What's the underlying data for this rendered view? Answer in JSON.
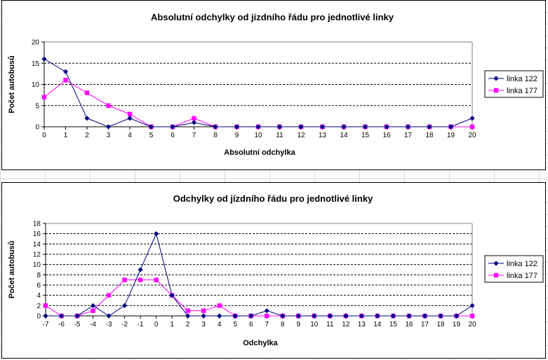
{
  "chart_data": [
    {
      "type": "line",
      "title": "Absolutní odchylky od jízdního řádu pro jednotlivé linky",
      "xlabel": "Absolutní odchylka",
      "ylabel": "Počet autobusů",
      "x": [
        0,
        1,
        2,
        3,
        4,
        5,
        6,
        7,
        8,
        9,
        10,
        11,
        12,
        13,
        14,
        15,
        16,
        17,
        18,
        19,
        20
      ],
      "ylim": [
        0,
        20
      ],
      "yticks": [
        0,
        5,
        10,
        15,
        20
      ],
      "grid": "horizontal dashed",
      "legend_position": "right",
      "series": [
        {
          "name": "linka 122",
          "color": "#000080",
          "marker": "diamond",
          "values": [
            16,
            13,
            2,
            0,
            2,
            0,
            0,
            1,
            0,
            0,
            0,
            0,
            0,
            0,
            0,
            0,
            0,
            0,
            0,
            0,
            2
          ]
        },
        {
          "name": "linka 177",
          "color": "#ff00ff",
          "marker": "square",
          "values": [
            7,
            11,
            8,
            5,
            3,
            0,
            0,
            2,
            0,
            0,
            0,
            0,
            0,
            0,
            0,
            0,
            0,
            0,
            0,
            0,
            0
          ]
        }
      ]
    },
    {
      "type": "line",
      "title": "Odchylky od jízdního řádu pro jednotlivé linky",
      "xlabel": "Odchylka",
      "ylabel": "Počet autobusů",
      "x": [
        -7,
        -6,
        -5,
        -4,
        -3,
        -2,
        -1,
        0,
        1,
        2,
        3,
        4,
        5,
        6,
        7,
        8,
        9,
        10,
        11,
        12,
        13,
        14,
        15,
        16,
        17,
        18,
        19,
        20
      ],
      "ylim": [
        0,
        18
      ],
      "yticks": [
        0,
        2,
        4,
        6,
        8,
        10,
        12,
        14,
        16,
        18
      ],
      "grid": "horizontal dashed",
      "legend_position": "right",
      "series": [
        {
          "name": "linka 122",
          "color": "#000080",
          "marker": "diamond",
          "values": [
            0,
            0,
            0,
            2,
            0,
            2,
            9,
            16,
            4,
            0,
            0,
            0,
            0,
            0,
            1,
            0,
            0,
            0,
            0,
            0,
            0,
            0,
            0,
            0,
            0,
            0,
            0,
            2
          ]
        },
        {
          "name": "linka 177",
          "color": "#ff00ff",
          "marker": "square",
          "values": [
            2,
            0,
            0,
            1,
            4,
            7,
            7,
            7,
            4,
            1,
            1,
            2,
            0,
            0,
            0,
            0,
            0,
            0,
            0,
            0,
            0,
            0,
            0,
            0,
            0,
            0,
            0,
            0
          ]
        }
      ]
    }
  ]
}
